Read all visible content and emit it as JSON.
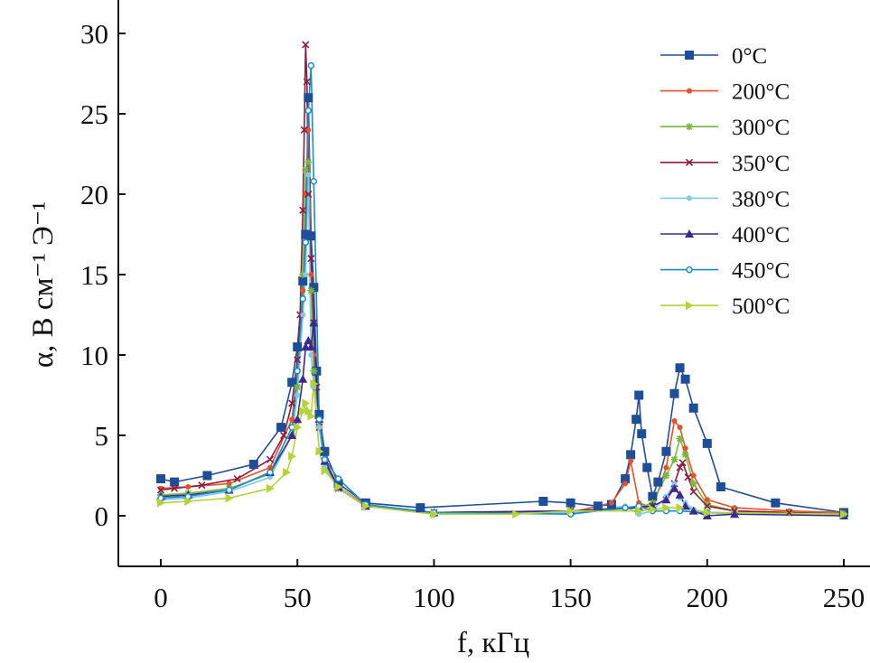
{
  "chart_data": {
    "type": "line",
    "title": "",
    "xlabel": "f, кГц",
    "ylabel": "α, В см⁻¹ Э⁻¹",
    "xlim": [
      -15,
      260
    ],
    "ylim": [
      -3,
      32
    ],
    "x_ticks": [
      0,
      50,
      100,
      150,
      200,
      250
    ],
    "y_ticks": [
      0,
      5,
      10,
      15,
      20,
      25,
      30
    ],
    "grid": false,
    "legend_position": "top-right",
    "series": [
      {
        "name": "0°C",
        "color": "#1f4e99",
        "marker": "square",
        "x": [
          0,
          5,
          17,
          34,
          44,
          48,
          50,
          52,
          53,
          54,
          55,
          56,
          57,
          58,
          60,
          65,
          75,
          95,
          140,
          150,
          160,
          165,
          170,
          172,
          174,
          175,
          176,
          178,
          180,
          182,
          185,
          188,
          190,
          192,
          195,
          200,
          205,
          225,
          250
        ],
        "y": [
          2.3,
          2.1,
          2.5,
          3.2,
          5.5,
          8.3,
          10.5,
          14.6,
          17.5,
          26.0,
          17.4,
          14.2,
          9.0,
          6.3,
          4.0,
          2.0,
          0.8,
          0.5,
          0.9,
          0.8,
          0.6,
          0.7,
          2.3,
          3.8,
          6.0,
          7.5,
          5.1,
          3.0,
          1.2,
          2.1,
          4.0,
          7.6,
          9.2,
          8.5,
          6.7,
          4.5,
          1.8,
          0.8,
          0.2
        ]
      },
      {
        "name": "200°C",
        "color": "#e8502a",
        "marker": "dot",
        "x": [
          0,
          10,
          25,
          40,
          48,
          50,
          52,
          53,
          54,
          55,
          56,
          58,
          60,
          65,
          75,
          100,
          150,
          165,
          170,
          172,
          175,
          180,
          185,
          188,
          190,
          192,
          195,
          200,
          210,
          230,
          250
        ],
        "y": [
          1.7,
          1.8,
          2.0,
          3.0,
          6.0,
          9.0,
          14.0,
          20.0,
          24.0,
          15.0,
          10.0,
          6.0,
          3.5,
          1.8,
          0.7,
          0.1,
          0.2,
          0.8,
          2.0,
          3.4,
          0.8,
          0.5,
          3.0,
          5.9,
          5.5,
          4.2,
          2.5,
          1.0,
          0.5,
          0.3,
          0.2
        ]
      },
      {
        "name": "300°C",
        "color": "#78b83e",
        "marker": "asterisk",
        "x": [
          0,
          10,
          25,
          40,
          48,
          50,
          52,
          53,
          54,
          55,
          56,
          58,
          60,
          65,
          75,
          100,
          150,
          175,
          180,
          185,
          188,
          190,
          192,
          195,
          200,
          210,
          230,
          250
        ],
        "y": [
          1.3,
          1.4,
          1.7,
          2.6,
          5.0,
          8.0,
          15.0,
          21.5,
          22.0,
          14.0,
          9.0,
          5.5,
          3.2,
          1.7,
          0.6,
          0.1,
          0.2,
          0.5,
          0.8,
          2.5,
          3.5,
          4.8,
          3.8,
          2.0,
          0.7,
          0.3,
          0.2,
          0.1
        ]
      },
      {
        "name": "350°C",
        "color": "#8b1e3f",
        "marker": "cross",
        "x": [
          0,
          5,
          15,
          28,
          40,
          45,
          48,
          50,
          51,
          52,
          52.5,
          53,
          53.5,
          54,
          55,
          56,
          57,
          58,
          60,
          65,
          75,
          100,
          150,
          180,
          185,
          188,
          190,
          191,
          193,
          195,
          200,
          210,
          230,
          250
        ],
        "y": [
          1.6,
          1.7,
          1.9,
          2.3,
          3.5,
          5.0,
          7.0,
          9.7,
          12.5,
          19.0,
          24.0,
          29.3,
          27.0,
          20.0,
          16.0,
          12.0,
          8.0,
          5.5,
          3.4,
          1.7,
          0.6,
          0.2,
          0.3,
          0.6,
          1.0,
          2.0,
          3.0,
          3.3,
          2.4,
          1.5,
          0.6,
          0.3,
          0.2,
          0.1
        ]
      },
      {
        "name": "380°C",
        "color": "#7fc8ee",
        "marker": "dot",
        "x": [
          0,
          10,
          25,
          40,
          48,
          50,
          52,
          53,
          54,
          55,
          56,
          58,
          60,
          65,
          75,
          100,
          150,
          170,
          175,
          180,
          185,
          188,
          190,
          192,
          195,
          200,
          210,
          250
        ],
        "y": [
          1.0,
          1.1,
          1.5,
          2.4,
          5.0,
          7.5,
          12.5,
          15.0,
          21.2,
          10.0,
          8.0,
          5.5,
          3.0,
          1.7,
          0.6,
          0.1,
          0.2,
          0.6,
          0.1,
          0.3,
          1.2,
          2.0,
          1.1,
          0.8,
          0.4,
          0.2,
          0.1,
          0.1
        ]
      },
      {
        "name": "400°C",
        "color": "#3b2a8e",
        "marker": "triangle",
        "x": [
          0,
          10,
          25,
          40,
          48,
          50,
          52,
          53,
          54,
          55,
          56,
          58,
          60,
          65,
          75,
          100,
          150,
          175,
          180,
          185,
          188,
          190,
          192,
          195,
          200,
          210,
          250
        ],
        "y": [
          1.2,
          1.3,
          1.6,
          2.7,
          5.0,
          6.0,
          8.5,
          10.5,
          10.9,
          10.5,
          12.0,
          6.0,
          3.4,
          1.8,
          0.6,
          0.2,
          0.3,
          0.5,
          0.6,
          1.0,
          1.7,
          1.3,
          0.6,
          0.3,
          0.0,
          0.1,
          0.0
        ]
      },
      {
        "name": "450°C",
        "color": "#1a8ec9",
        "marker": "circle",
        "x": [
          0,
          10,
          25,
          40,
          48,
          50,
          52,
          53,
          54,
          55,
          56,
          58,
          60,
          65,
          75,
          100,
          150,
          170,
          175,
          180,
          185,
          190,
          200,
          250
        ],
        "y": [
          1.1,
          1.2,
          1.6,
          2.7,
          5.5,
          9.0,
          13.5,
          17.0,
          25.2,
          28.0,
          20.8,
          6.0,
          3.5,
          2.3,
          0.7,
          0.2,
          0.1,
          0.5,
          0.6,
          0.3,
          0.3,
          0.3,
          0.2,
          0.1
        ]
      },
      {
        "name": "500°C",
        "color": "#b5d334",
        "marker": "right-triangle",
        "x": [
          0,
          10,
          25,
          40,
          46,
          48,
          50,
          52,
          53,
          54,
          55,
          56,
          58,
          60,
          65,
          75,
          100,
          130,
          150,
          175,
          180,
          185,
          190,
          200,
          250
        ],
        "y": [
          0.8,
          0.9,
          1.1,
          1.7,
          2.7,
          3.7,
          5.5,
          6.5,
          7.0,
          6.5,
          6.2,
          8.2,
          4.0,
          2.8,
          1.8,
          0.6,
          0.1,
          0.1,
          0.3,
          0.3,
          0.4,
          0.5,
          0.5,
          0.2,
          0.1
        ]
      }
    ]
  }
}
